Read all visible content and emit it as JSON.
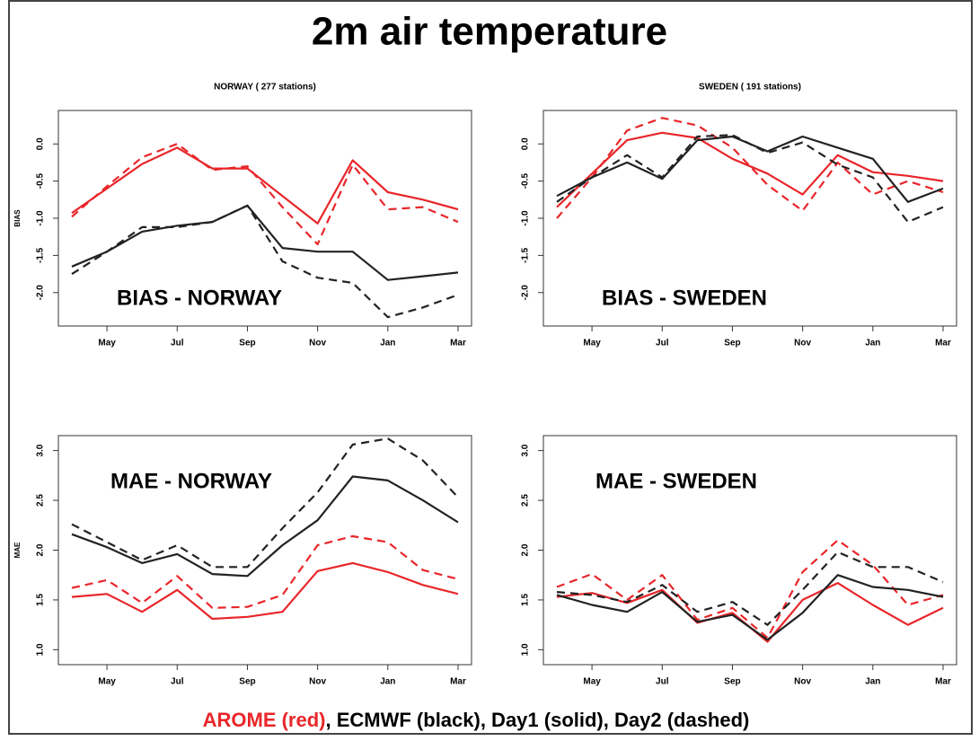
{
  "title": "2m air temperature",
  "footer": [
    {
      "text": "AROME (red)",
      "color": "#e8262a"
    },
    {
      "text": ", ECMWF (black), Day1 (solid), Day2 (dashed)",
      "color": "#000000"
    }
  ],
  "chart_data": [
    {
      "type": "line",
      "subtitle": "NORWAY ( 277  stations)",
      "ylabel": "BIAS",
      "annotation": "BIAS - NORWAY",
      "categories": [
        null,
        "May",
        null,
        "Jul",
        null,
        "Sep",
        null,
        "Nov",
        null,
        "Jan",
        null,
        "Mar"
      ],
      "ylim": [
        -2.45,
        0.45
      ],
      "yticks": [
        {
          "value": 0,
          "label": "0.0"
        },
        -0.5,
        {
          "value": -1,
          "label": "-1.0"
        },
        -1.5,
        {
          "value": -2,
          "label": "-2.0"
        }
      ],
      "series": [
        {
          "color": "#e8262a",
          "linestyle": "solid",
          "values": [
            -0.93,
            -0.6,
            -0.27,
            -0.05,
            -0.33,
            -0.33,
            -0.7,
            -1.07,
            -0.22,
            -0.65,
            -0.75,
            -0.88
          ]
        },
        {
          "color": "#e8262a",
          "linestyle": "dashed",
          "values": [
            -0.98,
            -0.57,
            -0.18,
            0.0,
            -0.35,
            -0.3,
            -0.85,
            -1.35,
            -0.28,
            -0.88,
            -0.85,
            -1.05
          ]
        },
        {
          "color": "#222222",
          "linestyle": "solid",
          "values": [
            -1.65,
            -1.45,
            -1.18,
            -1.1,
            -1.05,
            -0.83,
            -1.4,
            -1.45,
            -1.45,
            -1.83,
            -1.78,
            -1.73
          ]
        },
        {
          "color": "#222222",
          "linestyle": "dashed",
          "values": [
            -1.75,
            -1.45,
            -1.12,
            -1.12,
            -1.05,
            -0.83,
            -1.58,
            -1.8,
            -1.87,
            -2.33,
            -2.2,
            -2.03
          ]
        }
      ]
    },
    {
      "type": "line",
      "subtitle": "SWEDEN ( 191  stations)",
      "annotation": "BIAS - SWEDEN",
      "categories": [
        null,
        "May",
        null,
        "Jul",
        null,
        "Sep",
        null,
        "Nov",
        null,
        "Jan",
        null,
        "Mar"
      ],
      "ylim": [
        -2.45,
        0.45
      ],
      "yticks": [
        {
          "value": 0,
          "label": "0.0"
        },
        -0.5,
        {
          "value": -1,
          "label": "-1.0"
        },
        -1.5,
        {
          "value": -2,
          "label": "-2.0"
        }
      ],
      "series": [
        {
          "color": "#e8262a",
          "linestyle": "solid",
          "values": [
            -0.85,
            -0.4,
            0.05,
            0.15,
            0.08,
            -0.2,
            -0.4,
            -0.68,
            -0.15,
            -0.38,
            -0.43,
            -0.5
          ]
        },
        {
          "color": "#e8262a",
          "linestyle": "dashed",
          "values": [
            -1.0,
            -0.45,
            0.18,
            0.35,
            0.25,
            -0.05,
            -0.55,
            -0.9,
            -0.25,
            -0.68,
            -0.5,
            -0.65
          ]
        },
        {
          "color": "#222222",
          "linestyle": "solid",
          "values": [
            -0.7,
            -0.45,
            -0.25,
            -0.47,
            0.05,
            0.1,
            -0.1,
            0.1,
            -0.05,
            -0.2,
            -0.78,
            -0.6
          ]
        },
        {
          "color": "#222222",
          "linestyle": "dashed",
          "values": [
            -0.78,
            -0.45,
            -0.15,
            -0.45,
            0.1,
            0.12,
            -0.12,
            0.02,
            -0.28,
            -0.45,
            -1.05,
            -0.85
          ]
        }
      ]
    },
    {
      "type": "line",
      "ylabel": "MAE",
      "annotation": "MAE - NORWAY",
      "categories": [
        null,
        "May",
        null,
        "Jul",
        null,
        "Sep",
        null,
        "Nov",
        null,
        "Jan",
        null,
        "Mar"
      ],
      "ylim": [
        0.85,
        3.15
      ],
      "yticks": [
        {
          "value": 1,
          "label": "1.0"
        },
        1.5,
        {
          "value": 2,
          "label": "2.0"
        },
        2.5,
        {
          "value": 3,
          "label": "3.0"
        }
      ],
      "series": [
        {
          "color": "#e8262a",
          "linestyle": "solid",
          "values": [
            1.53,
            1.56,
            1.38,
            1.6,
            1.31,
            1.33,
            1.38,
            1.79,
            1.87,
            1.78,
            1.65,
            1.56
          ]
        },
        {
          "color": "#e8262a",
          "linestyle": "dashed",
          "values": [
            1.62,
            1.7,
            1.47,
            1.74,
            1.42,
            1.43,
            1.55,
            2.05,
            2.14,
            2.08,
            1.8,
            1.71
          ]
        },
        {
          "color": "#222222",
          "linestyle": "solid",
          "values": [
            2.16,
            2.03,
            1.87,
            1.96,
            1.76,
            1.74,
            2.05,
            2.3,
            2.74,
            2.7,
            2.5,
            2.28
          ]
        },
        {
          "color": "#222222",
          "linestyle": "dashed",
          "values": [
            2.26,
            2.08,
            1.9,
            2.05,
            1.83,
            1.83,
            2.22,
            2.58,
            3.06,
            3.12,
            2.9,
            2.53
          ]
        }
      ]
    },
    {
      "type": "line",
      "annotation": "MAE - SWEDEN",
      "categories": [
        null,
        "May",
        null,
        "Jul",
        null,
        "Sep",
        null,
        "Nov",
        null,
        "Jan",
        null,
        "Mar"
      ],
      "ylim": [
        0.85,
        3.15
      ],
      "yticks": [
        {
          "value": 1,
          "label": "1.0"
        },
        1.5,
        {
          "value": 2,
          "label": "2.0"
        },
        2.5,
        {
          "value": 3,
          "label": "3.0"
        }
      ],
      "series": [
        {
          "color": "#e8262a",
          "linestyle": "solid",
          "values": [
            1.53,
            1.57,
            1.47,
            1.6,
            1.27,
            1.37,
            1.08,
            1.5,
            1.67,
            1.45,
            1.25,
            1.42
          ]
        },
        {
          "color": "#e8262a",
          "linestyle": "dashed",
          "values": [
            1.63,
            1.76,
            1.5,
            1.75,
            1.3,
            1.42,
            1.12,
            1.78,
            2.1,
            1.85,
            1.45,
            1.55
          ]
        },
        {
          "color": "#222222",
          "linestyle": "solid",
          "values": [
            1.55,
            1.45,
            1.38,
            1.58,
            1.28,
            1.35,
            1.1,
            1.37,
            1.75,
            1.63,
            1.6,
            1.53
          ]
        },
        {
          "color": "#222222",
          "linestyle": "dashed",
          "values": [
            1.58,
            1.55,
            1.48,
            1.65,
            1.38,
            1.48,
            1.25,
            1.6,
            1.98,
            1.83,
            1.83,
            1.68
          ]
        }
      ]
    }
  ]
}
